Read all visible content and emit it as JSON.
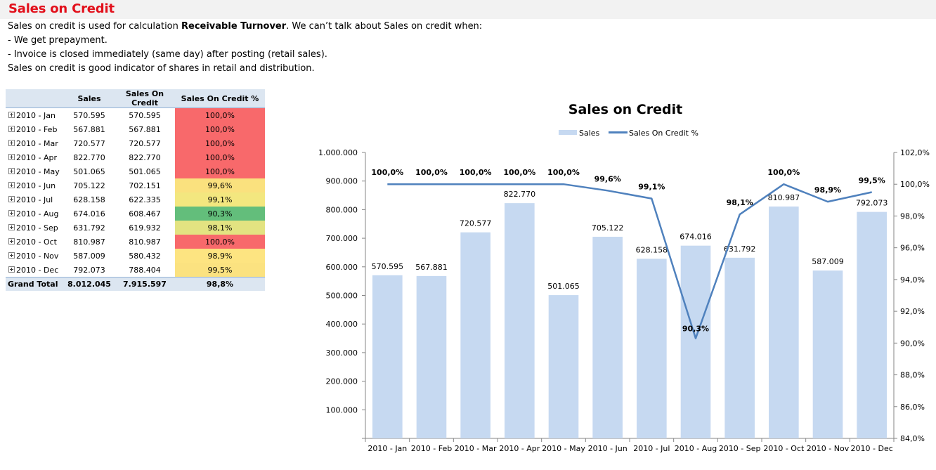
{
  "page": {
    "title": "Sales on Credit",
    "intro": {
      "line1_before": "Sales on credit is used for calculation ",
      "line1_bold": "Receivable Turnover",
      "line1_after": ". We can’t talk about Sales on credit when:",
      "line2": "- We get prepayment.",
      "line3": "- Invoice is closed immediately (same day) after posting (retail sales).",
      "line4": "Sales on credit is good indicator of shares in retail and distribution."
    }
  },
  "table": {
    "headers": [
      "",
      "Sales",
      "Sales On Credit",
      "Sales On Credit %"
    ],
    "rows": [
      {
        "label": "2010 - Jan",
        "sales": "570.595",
        "credit": "570.595",
        "pct": "100,0%",
        "color": "#f8696b"
      },
      {
        "label": "2010 - Feb",
        "sales": "567.881",
        "credit": "567.881",
        "pct": "100,0%",
        "color": "#f8696b"
      },
      {
        "label": "2010 - Mar",
        "sales": "720.577",
        "credit": "720.577",
        "pct": "100,0%",
        "color": "#f8696b"
      },
      {
        "label": "2010 - Apr",
        "sales": "822.770",
        "credit": "822.770",
        "pct": "100,0%",
        "color": "#f8696b"
      },
      {
        "label": "2010 - May",
        "sales": "501.065",
        "credit": "501.065",
        "pct": "100,0%",
        "color": "#f8696b"
      },
      {
        "label": "2010 - Jun",
        "sales": "705.122",
        "credit": "702.151",
        "pct": "99,6%",
        "color": "#fae17e"
      },
      {
        "label": "2010 - Jul",
        "sales": "628.158",
        "credit": "622.335",
        "pct": "99,1%",
        "color": "#f3e77f"
      },
      {
        "label": "2010 - Aug",
        "sales": "674.016",
        "credit": "608.467",
        "pct": "90,3%",
        "color": "#63be7b"
      },
      {
        "label": "2010 - Sep",
        "sales": "631.792",
        "credit": "619.932",
        "pct": "98,1%",
        "color": "#e3e381"
      },
      {
        "label": "2010 - Oct",
        "sales": "810.987",
        "credit": "810.987",
        "pct": "100,0%",
        "color": "#f8696b"
      },
      {
        "label": "2010 - Nov",
        "sales": "587.009",
        "credit": "580.432",
        "pct": "98,9%",
        "color": "#fde481"
      },
      {
        "label": "2010 - Dec",
        "sales": "792.073",
        "credit": "788.404",
        "pct": "99,5%",
        "color": "#fbe280"
      }
    ],
    "total": {
      "label": "Grand Total",
      "sales": "8.012.045",
      "credit": "7.915.597",
      "pct": "98,8%"
    }
  },
  "chart_data": {
    "type": "bar",
    "title": "Sales on Credit",
    "legend_position": "top",
    "categories": [
      "2010 - Jan",
      "2010 - Feb",
      "2010 - Mar",
      "2010 - Apr",
      "2010 - May",
      "2010 - Jun",
      "2010 - Jul",
      "2010 - Aug",
      "2010 - Sep",
      "2010 - Oct",
      "2010 - Nov",
      "2010 - Dec"
    ],
    "series": [
      {
        "name": "Sales",
        "type": "bar",
        "axis": "left",
        "color": "#c6d9f1",
        "values": [
          570595,
          567881,
          720577,
          822770,
          501065,
          705122,
          628158,
          674016,
          631792,
          810987,
          587009,
          792073
        ],
        "labels": [
          "570.595",
          "567.881",
          "720.577",
          "822.770",
          "501.065",
          "705.122",
          "628.158",
          "674.016",
          "631.792",
          "810.987",
          "587.009",
          "792.073"
        ]
      },
      {
        "name": "Sales On Credit %",
        "type": "line",
        "axis": "right",
        "color": "#4f81bd",
        "values": [
          100.0,
          100.0,
          100.0,
          100.0,
          100.0,
          99.6,
          99.1,
          90.3,
          98.1,
          100.0,
          98.9,
          99.5
        ],
        "labels": [
          "100,0%",
          "100,0%",
          "100,0%",
          "100,0%",
          "100,0%",
          "99,6%",
          "99,1%",
          "90,3%",
          "98,1%",
          "100,0%",
          "98,9%",
          "99,5%"
        ]
      }
    ],
    "ylim": [
      0,
      1000000
    ],
    "y_ticks": [
      "1.000.000",
      "900.000",
      "800.000",
      "700.000",
      "600.000",
      "500.000",
      "400.000",
      "300.000",
      "200.000",
      "100.000"
    ],
    "y2lim": [
      84,
      102
    ],
    "y2_ticks": [
      "102,0%",
      "100,0%",
      "98,0%",
      "96,0%",
      "94,0%",
      "92,0%",
      "90,0%",
      "88,0%",
      "86,0%",
      "84,0%"
    ],
    "grid": false
  }
}
